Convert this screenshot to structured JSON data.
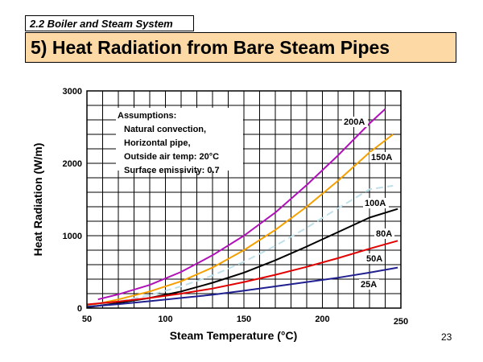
{
  "header": {
    "section": "2.2  Boiler and Steam System",
    "title": "5) Heat Radiation from Bare Steam Pipes"
  },
  "footer": {
    "page_number": "23"
  },
  "chart_data": {
    "type": "line",
    "xlabel": "Steam Temperature (°C)",
    "ylabel": "Heat Radiation (W/m)",
    "xlim": [
      50,
      250
    ],
    "ylim": [
      0,
      3000
    ],
    "x_major_ticks": [
      50,
      100,
      150,
      200,
      250
    ],
    "y_major_ticks": [
      0,
      1000,
      2000,
      3000
    ],
    "x_grid_step": 10,
    "y_grid_step": 200,
    "grid": true,
    "legend": "none (inline labels)",
    "annotation": {
      "lines": [
        "Assumptions:",
        "Natural convection,",
        "Horizontal pipe,",
        "Outside air temp: 20°C",
        "Surface emissivity: 0.7"
      ]
    },
    "series": [
      {
        "name": "200A",
        "color": "#b010b8",
        "style": "solid",
        "x": [
          57,
          70,
          90,
          110,
          130,
          150,
          170,
          190,
          210,
          230,
          240
        ],
        "y": [
          120,
          190,
          320,
          500,
          730,
          1000,
          1320,
          1700,
          2110,
          2550,
          2750
        ]
      },
      {
        "name": "150A",
        "color": "#f5a000",
        "style": "solid",
        "x": [
          50,
          70,
          90,
          110,
          130,
          150,
          170,
          190,
          210,
          230,
          245
        ],
        "y": [
          30,
          120,
          230,
          370,
          560,
          800,
          1080,
          1400,
          1760,
          2150,
          2400
        ]
      },
      {
        "name": "100A",
        "color": "#bfe0ea",
        "style": "dashed",
        "x": [
          50,
          70,
          90,
          110,
          130,
          150,
          170,
          190,
          210,
          230,
          245
        ],
        "y": [
          20,
          90,
          180,
          300,
          450,
          640,
          860,
          1110,
          1380,
          1640,
          1690
        ]
      },
      {
        "name": "80A",
        "color": "#000000",
        "style": "solid",
        "x": [
          50,
          70,
          90,
          110,
          130,
          150,
          170,
          190,
          210,
          230,
          248
        ],
        "y": [
          10,
          70,
          140,
          230,
          350,
          490,
          660,
          850,
          1050,
          1250,
          1370
        ]
      },
      {
        "name": "50A",
        "color": "#e00000",
        "style": "solid",
        "x": [
          50,
          70,
          90,
          110,
          130,
          150,
          170,
          190,
          210,
          230,
          248
        ],
        "y": [
          50,
          90,
          140,
          200,
          270,
          360,
          460,
          570,
          690,
          820,
          930
        ]
      },
      {
        "name": "25A",
        "color": "#202090",
        "style": "solid",
        "x": [
          50,
          70,
          90,
          110,
          130,
          150,
          170,
          190,
          210,
          230,
          248
        ],
        "y": [
          20,
          55,
          95,
          140,
          185,
          240,
          300,
          360,
          420,
          490,
          560
        ]
      }
    ]
  }
}
